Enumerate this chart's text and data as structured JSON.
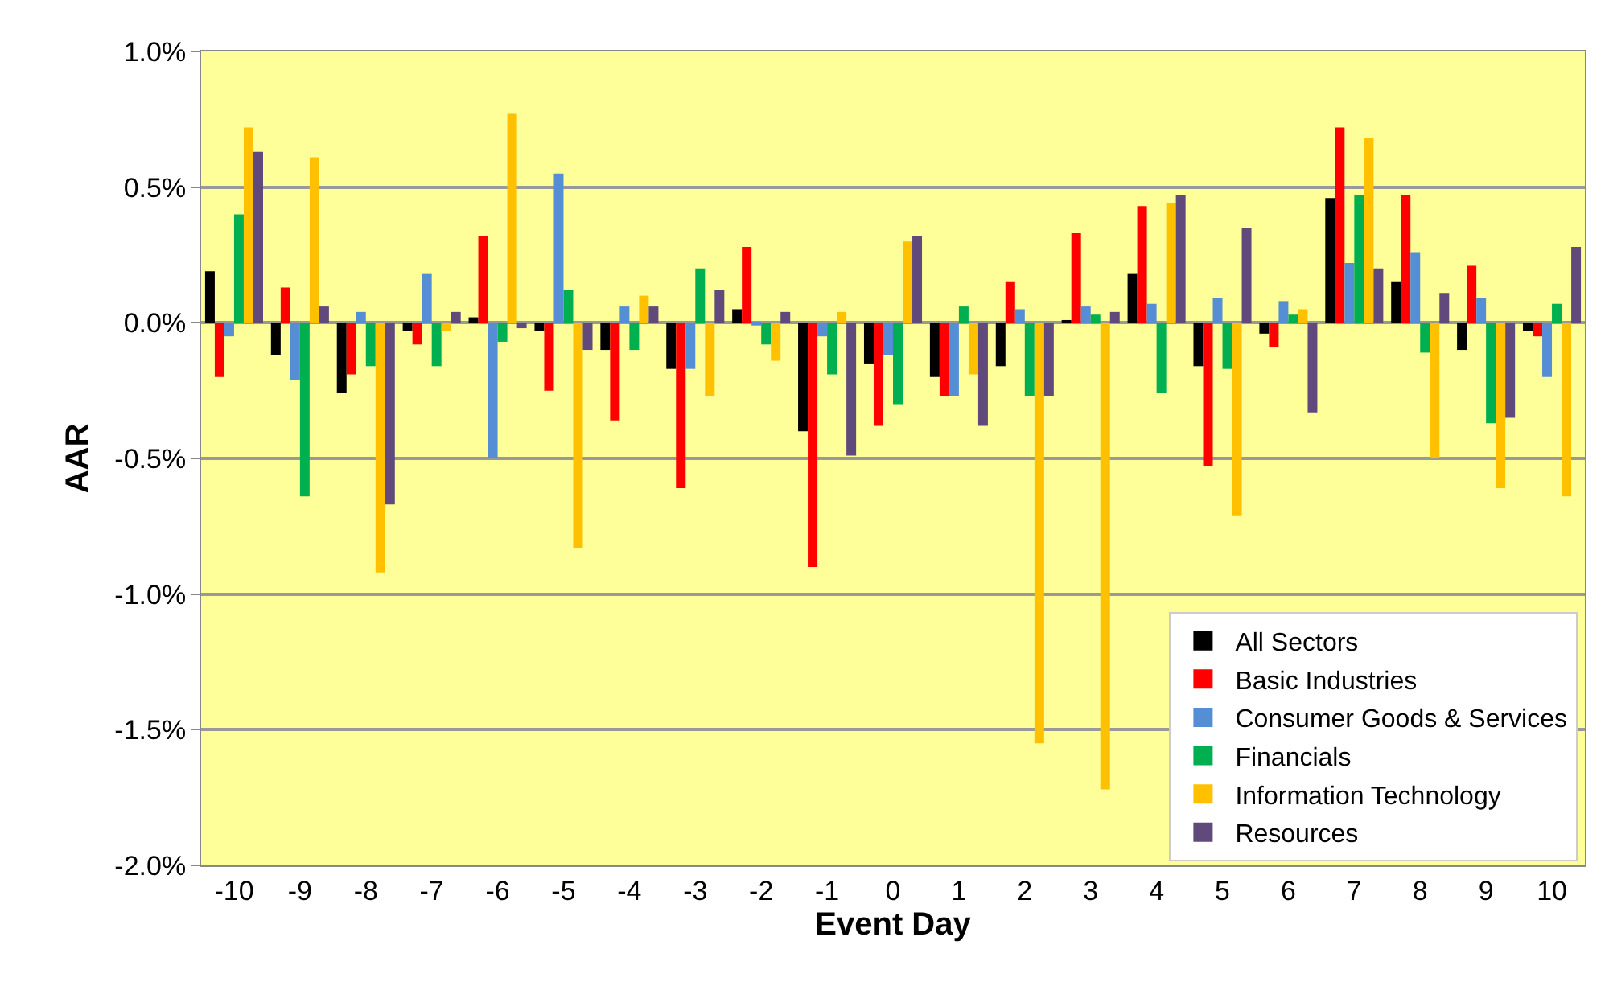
{
  "chart_data": {
    "type": "bar",
    "xlabel": "Event Day",
    "ylabel": "AAR",
    "categories": [
      "-10",
      "-9",
      "-8",
      "-7",
      "-6",
      "-5",
      "-4",
      "-3",
      "-2",
      "-1",
      "0",
      "1",
      "2",
      "3",
      "4",
      "5",
      "6",
      "7",
      "8",
      "9",
      "10"
    ],
    "series": [
      {
        "name": "All Sectors",
        "color": "#000000",
        "values": [
          0.19,
          -0.12,
          -0.26,
          -0.03,
          0.02,
          -0.03,
          -0.1,
          -0.17,
          0.05,
          -0.4,
          -0.15,
          -0.2,
          -0.16,
          0.01,
          0.18,
          -0.16,
          -0.04,
          0.46,
          0.15,
          -0.1,
          -0.03
        ]
      },
      {
        "name": "Basic Industries",
        "color": "#ff0000",
        "values": [
          -0.2,
          0.13,
          -0.19,
          -0.08,
          0.32,
          -0.25,
          -0.36,
          -0.61,
          0.28,
          -0.9,
          -0.38,
          -0.27,
          0.15,
          0.33,
          0.43,
          -0.53,
          -0.09,
          0.72,
          0.47,
          0.21,
          -0.05
        ]
      },
      {
        "name": "Consumer Goods & Services",
        "color": "#558ed5",
        "values": [
          -0.05,
          -0.21,
          0.04,
          0.18,
          -0.5,
          0.55,
          0.06,
          -0.17,
          -0.01,
          -0.05,
          -0.12,
          -0.27,
          0.05,
          0.06,
          0.07,
          0.09,
          0.08,
          0.22,
          0.26,
          0.09,
          -0.2
        ]
      },
      {
        "name": "Financials",
        "color": "#00b050",
        "values": [
          0.4,
          -0.64,
          -0.16,
          -0.16,
          -0.07,
          0.12,
          -0.1,
          0.2,
          -0.08,
          -0.19,
          -0.3,
          0.06,
          -0.27,
          0.03,
          -0.26,
          -0.17,
          0.03,
          0.47,
          -0.11,
          -0.37,
          0.07
        ]
      },
      {
        "name": "Information Technology",
        "color": "#ffc000",
        "values": [
          0.72,
          0.61,
          -0.92,
          -0.03,
          0.77,
          -0.83,
          0.1,
          -0.27,
          -0.14,
          0.04,
          0.3,
          -0.19,
          -1.55,
          -1.72,
          0.44,
          -0.71,
          0.05,
          0.68,
          -0.5,
          -0.61,
          -0.64
        ]
      },
      {
        "name": "Resources",
        "color": "#604a7b",
        "values": [
          0.63,
          0.06,
          -0.67,
          0.04,
          -0.02,
          -0.1,
          0.06,
          0.12,
          0.04,
          -0.49,
          0.32,
          -0.38,
          -0.27,
          0.04,
          0.47,
          0.35,
          -0.33,
          0.2,
          0.11,
          -0.35,
          0.28
        ]
      }
    ],
    "ylim": [
      -2.0,
      1.0
    ],
    "yticks": [
      {
        "value": -2.0,
        "label": "-2.0%"
      },
      {
        "value": -1.5,
        "label": "-1.5%"
      },
      {
        "value": -1.0,
        "label": "-1.0%"
      },
      {
        "value": -0.5,
        "label": "-0.5%"
      },
      {
        "value": 0.0,
        "label": "0.0%"
      },
      {
        "value": 0.5,
        "label": "0.5%"
      },
      {
        "value": 1.0,
        "label": "1.0%"
      }
    ],
    "grid": "y",
    "legend": "bottom right"
  }
}
